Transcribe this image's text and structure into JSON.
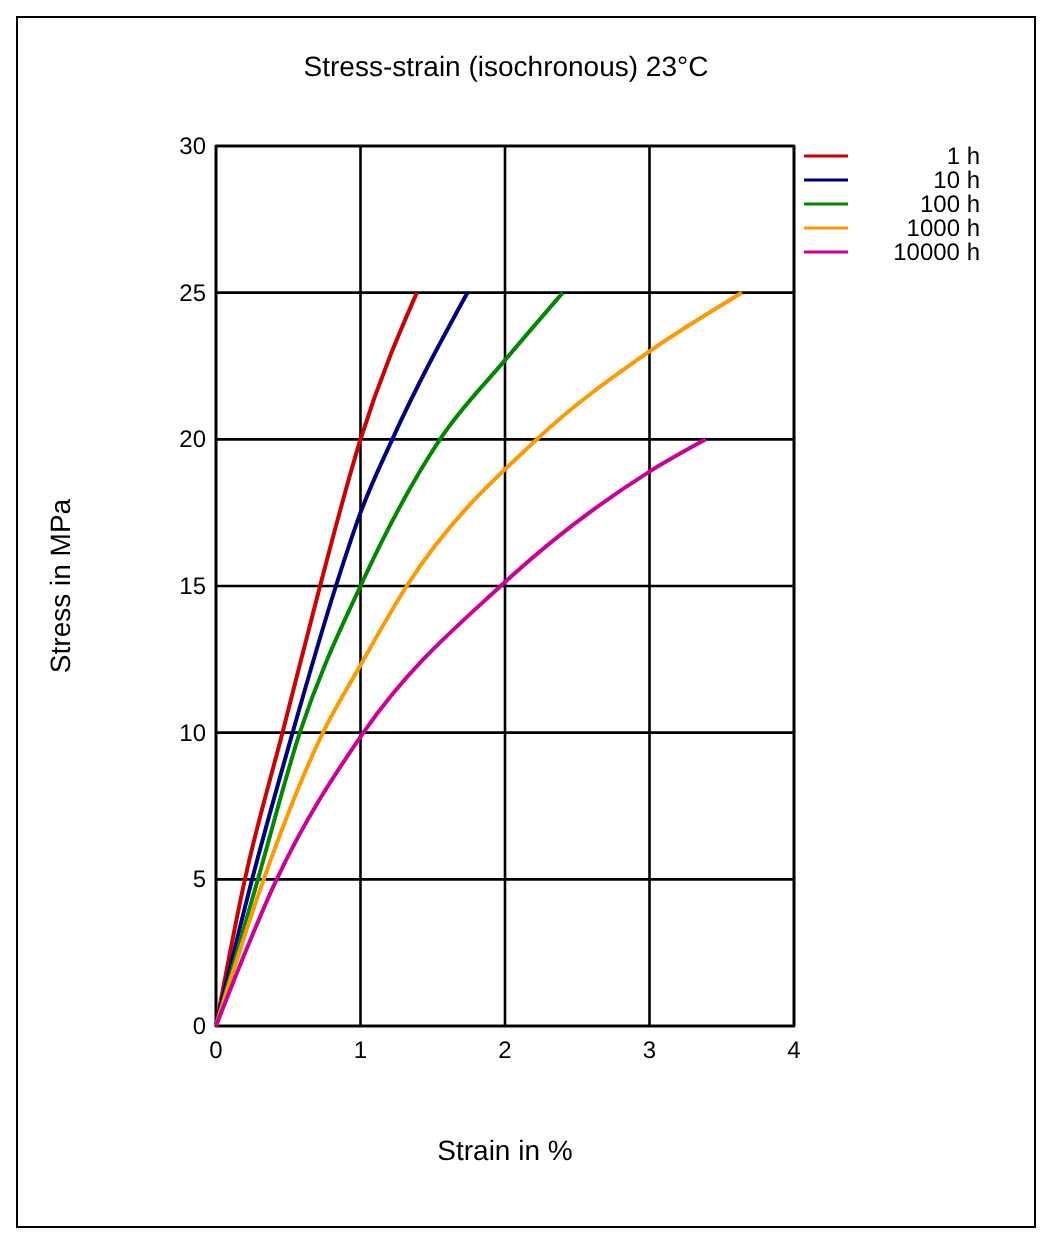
{
  "chart_data": {
    "type": "line",
    "title": "Stress-strain (isochronous) 23°C",
    "xlabel": "Strain in %",
    "ylabel": "Stress in MPa",
    "xlim": [
      0,
      4
    ],
    "xticks": [
      0,
      1,
      2,
      3,
      4
    ],
    "ylim": [
      0,
      30
    ],
    "yticks": [
      0,
      5,
      10,
      15,
      20,
      25,
      30
    ],
    "grid": true,
    "legend": "top right",
    "marker": "none",
    "line_style": "solid",
    "series": [
      {
        "name": "1 h",
        "color": "#cc0000",
        "x": [
          0,
          0.2,
          0.46,
          0.72,
          1.0,
          1.39
        ],
        "values": [
          0,
          5,
          10,
          15,
          20,
          25
        ]
      },
      {
        "name": "10 h",
        "color": "#000080",
        "x": [
          0,
          0.25,
          0.53,
          0.83,
          1.0,
          1.22,
          1.74
        ],
        "values": [
          0,
          5,
          10,
          15,
          17.5,
          20,
          25
        ]
      },
      {
        "name": "100 h",
        "color": "#008800",
        "x": [
          0,
          0.29,
          0.58,
          1.0,
          1.55,
          2.0,
          2.4
        ],
        "values": [
          0,
          5,
          10,
          15,
          20,
          22.7,
          25
        ]
      },
      {
        "name": "1000 h",
        "color": "#ff9900",
        "x": [
          0,
          0.33,
          0.74,
          1.0,
          1.32,
          2.22,
          3.0,
          3.64
        ],
        "values": [
          0,
          5,
          10,
          12.3,
          15,
          20,
          23,
          25
        ]
      },
      {
        "name": "10000 h",
        "color": "#cc0099",
        "x": [
          0,
          0.42,
          1.02,
          1.97,
          3.0,
          3.39
        ],
        "values": [
          0,
          5,
          10,
          15,
          18.9,
          20
        ]
      }
    ]
  }
}
